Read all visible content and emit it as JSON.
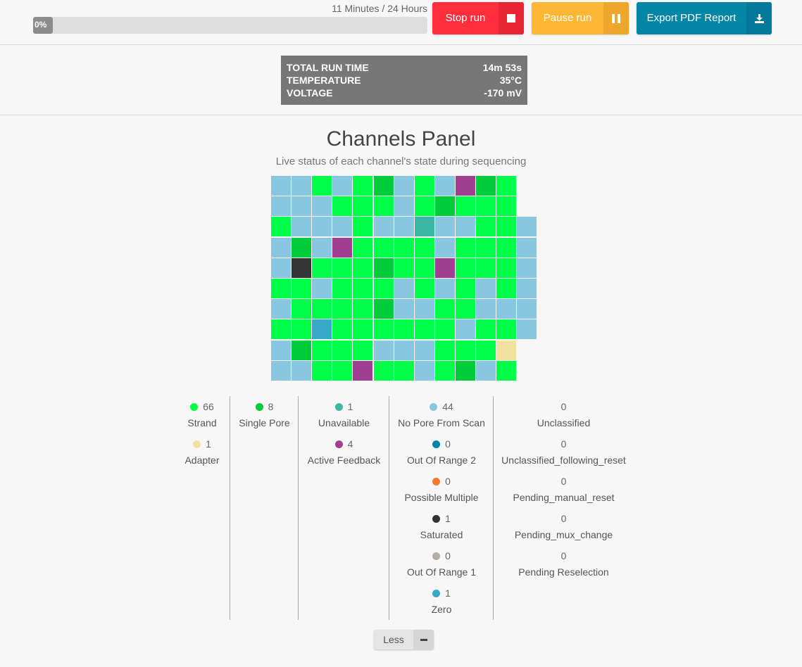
{
  "progress": {
    "label": "11 Minutes / 24 Hours",
    "percent_text": "0%",
    "fraction": 0
  },
  "buttons": {
    "stop": {
      "label": "Stop run",
      "icon": "stop-icon",
      "color": "#fe2e3d",
      "icon_bg": "#e92433"
    },
    "pause": {
      "label": "Pause run",
      "icon": "pause-icon",
      "color": "#fdb734",
      "icon_bg": "#eda82b"
    },
    "export": {
      "label": "Export PDF Report",
      "icon": "download-icon",
      "color": "#0386a6",
      "icon_bg": "#02799a"
    }
  },
  "stats": [
    {
      "key": "TOTAL RUN TIME",
      "value": "14m 53s"
    },
    {
      "key": "TEMPERATURE",
      "value": "35°C"
    },
    {
      "key": "VOLTAGE",
      "value": "-170 mV"
    }
  ],
  "panel": {
    "title": "Channels Panel",
    "subtitle": "Live status of each channel's state during sequencing"
  },
  "state_colors": {
    "strand": "#00ff48",
    "single": "#01cc3a",
    "nopore": "#89c6e0",
    "unavailable": "#3cb6a5",
    "feedback": "#a03e91",
    "saturated": "#333333",
    "zero": "#37a9c9",
    "adapter": "#f2e2a0",
    "oor2": "#0385a8",
    "multiple": "#f67a2e",
    "oor1": "#b4aea7"
  },
  "channel_grid": [
    [
      "nopore",
      "nopore",
      "strand",
      "nopore",
      "strand",
      "single",
      "nopore",
      "strand",
      "nopore",
      "feedback",
      "single",
      "strand",
      null
    ],
    [
      "nopore",
      "nopore",
      "nopore",
      "strand",
      "strand",
      "strand",
      "nopore",
      "strand",
      "single",
      "strand",
      "strand",
      "strand",
      null
    ],
    [
      "strand",
      "nopore",
      "nopore",
      "nopore",
      "strand",
      "nopore",
      "nopore",
      "unavailable",
      "nopore",
      "nopore",
      "strand",
      "strand",
      "nopore"
    ],
    [
      "nopore",
      "single",
      "nopore",
      "feedback",
      "strand",
      "strand",
      "strand",
      "strand",
      "nopore",
      "strand",
      "strand",
      "strand",
      "nopore"
    ],
    [
      "nopore",
      "saturated",
      "strand",
      "strand",
      "strand",
      "single",
      "strand",
      "strand",
      "feedback",
      "strand",
      "strand",
      "strand",
      "nopore"
    ],
    [
      "strand",
      "strand",
      "nopore",
      "strand",
      "strand",
      "strand",
      "nopore",
      "strand",
      "nopore",
      "strand",
      "nopore",
      "strand",
      "nopore"
    ],
    [
      "nopore",
      "strand",
      "strand",
      "strand",
      "strand",
      "single",
      "nopore",
      "nopore",
      "strand",
      "strand",
      "nopore",
      "nopore",
      "nopore"
    ],
    [
      "strand",
      "strand",
      "zero",
      "strand",
      "strand",
      "strand",
      "strand",
      "strand",
      "strand",
      "nopore",
      "strand",
      "strand",
      "nopore"
    ],
    [
      "nopore",
      "single",
      "strand",
      "strand",
      "strand",
      "nopore",
      "nopore",
      "nopore",
      "strand",
      "strand",
      "strand",
      "adapter",
      null
    ],
    [
      "nopore",
      "nopore",
      "strand",
      "strand",
      "feedback",
      "strand",
      "strand",
      "nopore",
      "strand",
      "single",
      "nopore",
      "strand",
      null
    ]
  ],
  "legend": [
    [
      {
        "count": "66",
        "label": "Strand",
        "color": "#00ff48"
      },
      {
        "count": "1",
        "label": "Adapter",
        "color": "#f2e2a0"
      }
    ],
    [
      {
        "count": "8",
        "label": "Single Pore",
        "color": "#01cc3a"
      }
    ],
    [
      {
        "count": "1",
        "label": "Unavailable",
        "color": "#3cb6a5"
      },
      {
        "count": "4",
        "label": "Active Feedback",
        "color": "#a03e91"
      }
    ],
    [
      {
        "count": "44",
        "label": "No Pore From Scan",
        "color": "#89c6e0"
      },
      {
        "count": "0",
        "label": "Out Of Range 2",
        "color": "#0385a8"
      },
      {
        "count": "0",
        "label": "Possible Multiple",
        "color": "#f67a2e"
      },
      {
        "count": "1",
        "label": "Saturated",
        "color": "#333333"
      },
      {
        "count": "0",
        "label": "Out Of Range 1",
        "color": "#b4aea7"
      },
      {
        "count": "1",
        "label": "Zero",
        "color": "#37a9c9"
      }
    ],
    [
      {
        "count": "0",
        "label": "Unclassified",
        "color": null
      },
      {
        "count": "0",
        "label": "Unclassified_following_reset",
        "color": null
      },
      {
        "count": "0",
        "label": "Pending_manual_reset",
        "color": null
      },
      {
        "count": "0",
        "label": "Pending_mux_change",
        "color": null
      },
      {
        "count": "0",
        "label": "Pending Reselection",
        "color": null
      }
    ]
  ],
  "less_button": {
    "label": "Less",
    "icon": "minus-icon"
  }
}
